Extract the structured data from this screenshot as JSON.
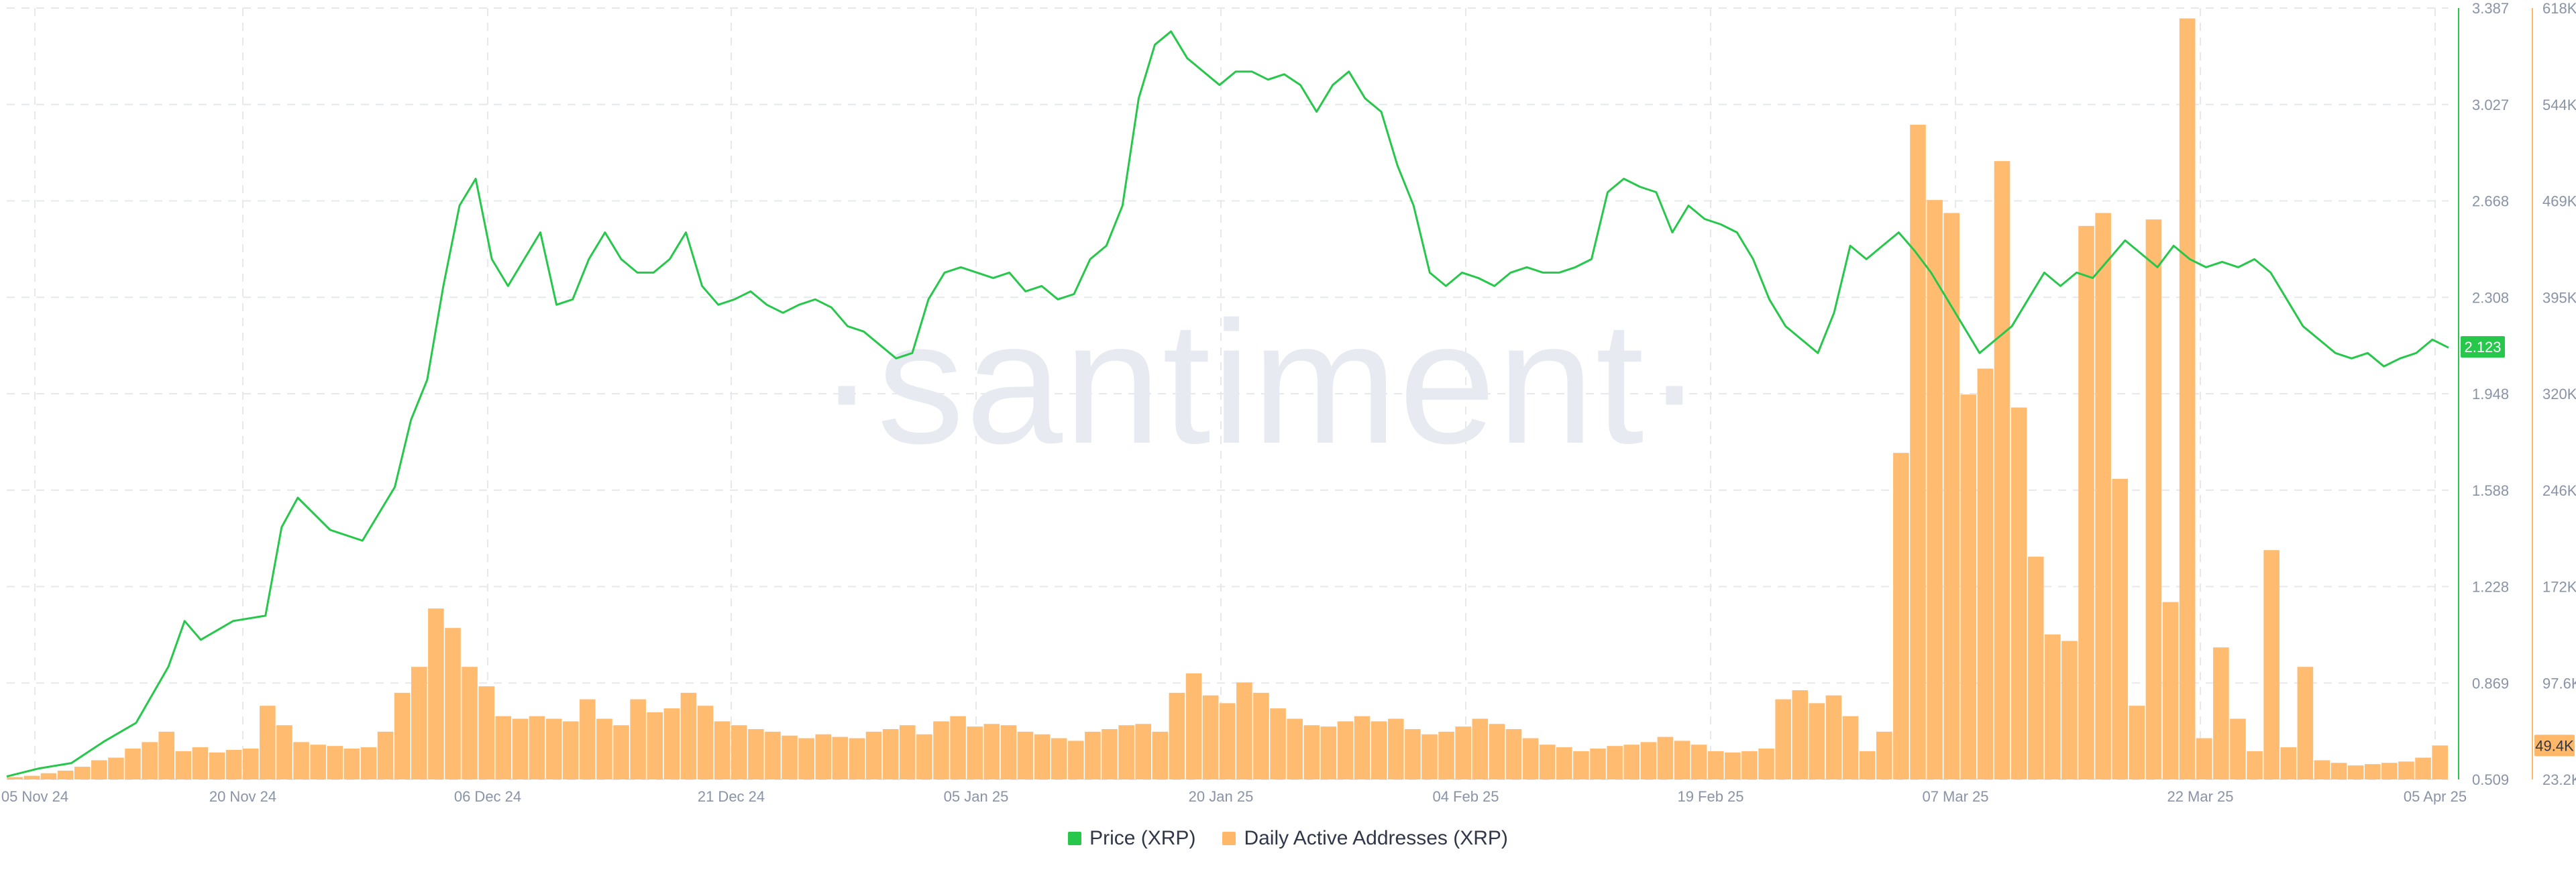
{
  "watermark": "·santiment·",
  "legend": {
    "price_label": "Price (XRP)",
    "daa_label": "Daily Active Addresses (XRP)"
  },
  "colors": {
    "price": "#26c74a",
    "daa": "#ffb869",
    "price_badge": "#26c74a",
    "daa_badge": "#ffb869",
    "grid": "#e6e8ee"
  },
  "chart_data": {
    "type": "line+bar",
    "x_ticks": [
      "05 Nov 24",
      "20 Nov 24",
      "06 Dec 24",
      "21 Dec 24",
      "05 Jan 25",
      "20 Jan 25",
      "04 Feb 25",
      "19 Feb 25",
      "07 Mar 25",
      "22 Mar 25",
      "05 Apr 25"
    ],
    "x_range": [
      "2024-11-05",
      "2025-04-05"
    ],
    "price_axis": {
      "ticks": [
        "3.387",
        "3.027",
        "2.668",
        "2.308",
        "1.948",
        "1.588",
        "1.228",
        "0.869",
        "0.509"
      ],
      "ylim": [
        0.509,
        3.387
      ],
      "current_value": "2.123"
    },
    "daa_axis": {
      "ticks": [
        "618K",
        "544K",
        "469K",
        "395K",
        "320K",
        "246K",
        "172K",
        "97.6K",
        "23.2K"
      ],
      "ylim": [
        23200,
        618000
      ],
      "current_value": "49.4K"
    },
    "series": [
      {
        "name": "Price (XRP)",
        "kind": "line",
        "points": [
          [
            "2024-11-05",
            0.52
          ],
          [
            "2024-11-07",
            0.55
          ],
          [
            "2024-11-09",
            0.57
          ],
          [
            "2024-11-11",
            0.65
          ],
          [
            "2024-11-13",
            0.72
          ],
          [
            "2024-11-15",
            0.93
          ],
          [
            "2024-11-16",
            1.1
          ],
          [
            "2024-11-17",
            1.03
          ],
          [
            "2024-11-19",
            1.1
          ],
          [
            "2024-11-21",
            1.12
          ],
          [
            "2024-11-22",
            1.45
          ],
          [
            "2024-11-23",
            1.56
          ],
          [
            "2024-11-25",
            1.44
          ],
          [
            "2024-11-27",
            1.4
          ],
          [
            "2024-11-29",
            1.6
          ],
          [
            "2024-11-30",
            1.85
          ],
          [
            "2024-12-01",
            2.0
          ],
          [
            "2024-12-02",
            2.35
          ],
          [
            "2024-12-03",
            2.65
          ],
          [
            "2024-12-04",
            2.75
          ],
          [
            "2024-12-05",
            2.45
          ],
          [
            "2024-12-06",
            2.35
          ],
          [
            "2024-12-07",
            2.45
          ],
          [
            "2024-12-08",
            2.55
          ],
          [
            "2024-12-09",
            2.28
          ],
          [
            "2024-12-10",
            2.3
          ],
          [
            "2024-12-11",
            2.45
          ],
          [
            "2024-12-12",
            2.55
          ],
          [
            "2024-12-13",
            2.45
          ],
          [
            "2024-12-14",
            2.4
          ],
          [
            "2024-12-15",
            2.4
          ],
          [
            "2024-12-16",
            2.45
          ],
          [
            "2024-12-17",
            2.55
          ],
          [
            "2024-12-18",
            2.35
          ],
          [
            "2024-12-19",
            2.28
          ],
          [
            "2024-12-20",
            2.3
          ],
          [
            "2024-12-21",
            2.33
          ],
          [
            "2024-12-22",
            2.28
          ],
          [
            "2024-12-23",
            2.25
          ],
          [
            "2024-12-24",
            2.28
          ],
          [
            "2024-12-25",
            2.3
          ],
          [
            "2024-12-26",
            2.27
          ],
          [
            "2024-12-27",
            2.2
          ],
          [
            "2024-12-28",
            2.18
          ],
          [
            "2024-12-29",
            2.13
          ],
          [
            "2024-12-30",
            2.08
          ],
          [
            "2024-12-31",
            2.1
          ],
          [
            "2025-01-01",
            2.3
          ],
          [
            "2025-01-02",
            2.4
          ],
          [
            "2025-01-03",
            2.42
          ],
          [
            "2025-01-04",
            2.4
          ],
          [
            "2025-01-05",
            2.38
          ],
          [
            "2025-01-06",
            2.4
          ],
          [
            "2025-01-07",
            2.33
          ],
          [
            "2025-01-08",
            2.35
          ],
          [
            "2025-01-09",
            2.3
          ],
          [
            "2025-01-10",
            2.32
          ],
          [
            "2025-01-11",
            2.45
          ],
          [
            "2025-01-12",
            2.5
          ],
          [
            "2025-01-13",
            2.65
          ],
          [
            "2025-01-14",
            3.05
          ],
          [
            "2025-01-15",
            3.25
          ],
          [
            "2025-01-16",
            3.3
          ],
          [
            "2025-01-17",
            3.2
          ],
          [
            "2025-01-18",
            3.15
          ],
          [
            "2025-01-19",
            3.1
          ],
          [
            "2025-01-20",
            3.15
          ],
          [
            "2025-01-21",
            3.15
          ],
          [
            "2025-01-22",
            3.12
          ],
          [
            "2025-01-23",
            3.14
          ],
          [
            "2025-01-24",
            3.1
          ],
          [
            "2025-01-25",
            3.0
          ],
          [
            "2025-01-26",
            3.1
          ],
          [
            "2025-01-27",
            3.15
          ],
          [
            "2025-01-28",
            3.05
          ],
          [
            "2025-01-29",
            3.0
          ],
          [
            "2025-01-30",
            2.8
          ],
          [
            "2025-01-31",
            2.65
          ],
          [
            "2025-02-01",
            2.4
          ],
          [
            "2025-02-02",
            2.35
          ],
          [
            "2025-02-03",
            2.4
          ],
          [
            "2025-02-04",
            2.38
          ],
          [
            "2025-02-05",
            2.35
          ],
          [
            "2025-02-06",
            2.4
          ],
          [
            "2025-02-07",
            2.42
          ],
          [
            "2025-02-08",
            2.4
          ],
          [
            "2025-02-09",
            2.4
          ],
          [
            "2025-02-10",
            2.42
          ],
          [
            "2025-02-11",
            2.45
          ],
          [
            "2025-02-12",
            2.7
          ],
          [
            "2025-02-13",
            2.75
          ],
          [
            "2025-02-14",
            2.72
          ],
          [
            "2025-02-15",
            2.7
          ],
          [
            "2025-02-16",
            2.55
          ],
          [
            "2025-02-17",
            2.65
          ],
          [
            "2025-02-18",
            2.6
          ],
          [
            "2025-02-19",
            2.58
          ],
          [
            "2025-02-20",
            2.55
          ],
          [
            "2025-02-21",
            2.45
          ],
          [
            "2025-02-22",
            2.3
          ],
          [
            "2025-02-23",
            2.2
          ],
          [
            "2025-02-24",
            2.15
          ],
          [
            "2025-02-25",
            2.1
          ],
          [
            "2025-02-26",
            2.25
          ],
          [
            "2025-02-27",
            2.5
          ],
          [
            "2025-02-28",
            2.45
          ],
          [
            "2025-03-01",
            2.5
          ],
          [
            "2025-03-02",
            2.55
          ],
          [
            "2025-03-03",
            2.48
          ],
          [
            "2025-03-04",
            2.4
          ],
          [
            "2025-03-05",
            2.3
          ],
          [
            "2025-03-06",
            2.2
          ],
          [
            "2025-03-07",
            2.1
          ],
          [
            "2025-03-08",
            2.15
          ],
          [
            "2025-03-09",
            2.2
          ],
          [
            "2025-03-10",
            2.3
          ],
          [
            "2025-03-11",
            2.4
          ],
          [
            "2025-03-12",
            2.35
          ],
          [
            "2025-03-13",
            2.4
          ],
          [
            "2025-03-14",
            2.38
          ],
          [
            "2025-03-15",
            2.45
          ],
          [
            "2025-03-16",
            2.52
          ],
          [
            "2025-03-17",
            2.47
          ],
          [
            "2025-03-18",
            2.42
          ],
          [
            "2025-03-19",
            2.5
          ],
          [
            "2025-03-20",
            2.45
          ],
          [
            "2025-03-21",
            2.42
          ],
          [
            "2025-03-22",
            2.44
          ],
          [
            "2025-03-23",
            2.42
          ],
          [
            "2025-03-24",
            2.45
          ],
          [
            "2025-03-25",
            2.4
          ],
          [
            "2025-03-26",
            2.3
          ],
          [
            "2025-03-27",
            2.2
          ],
          [
            "2025-03-28",
            2.15
          ],
          [
            "2025-03-29",
            2.1
          ],
          [
            "2025-03-30",
            2.08
          ],
          [
            "2025-03-31",
            2.1
          ],
          [
            "2025-04-01",
            2.05
          ],
          [
            "2025-04-02",
            2.08
          ],
          [
            "2025-04-03",
            2.1
          ],
          [
            "2025-04-04",
            2.15
          ],
          [
            "2025-04-05",
            2.12
          ]
        ]
      },
      {
        "name": "Daily Active Addresses (XRP)",
        "kind": "bar",
        "values": [
          25000,
          26000,
          28000,
          30000,
          33000,
          38000,
          40000,
          47000,
          52000,
          60000,
          45000,
          48000,
          44000,
          46000,
          47000,
          80000,
          65000,
          52000,
          50000,
          49000,
          47000,
          48000,
          60000,
          90000,
          110000,
          155000,
          140000,
          110000,
          95000,
          72000,
          70000,
          72000,
          70000,
          68000,
          85000,
          70000,
          65000,
          85000,
          75000,
          78000,
          90000,
          80000,
          68000,
          65000,
          62000,
          60000,
          57000,
          55000,
          58000,
          56000,
          55000,
          60000,
          62000,
          65000,
          58000,
          68000,
          72000,
          64000,
          66000,
          65000,
          60000,
          58000,
          55000,
          53000,
          60000,
          62000,
          65000,
          66000,
          60000,
          90000,
          105000,
          88000,
          82000,
          98000,
          90000,
          78000,
          70000,
          65000,
          64000,
          68000,
          72000,
          68000,
          70000,
          62000,
          58000,
          60000,
          64000,
          70000,
          66000,
          62000,
          55000,
          50000,
          48000,
          45000,
          47000,
          49000,
          50000,
          52000,
          56000,
          53000,
          50000,
          45000,
          44000,
          45000,
          47000,
          85000,
          92000,
          82000,
          88000,
          72000,
          45000,
          60000,
          275000,
          528000,
          470000,
          460000,
          320000,
          340000,
          500000,
          310000,
          195000,
          135000,
          130000,
          450000,
          460000,
          255000,
          80000,
          455000,
          160000,
          610000,
          55000,
          125000,
          70000,
          45000,
          200000,
          48000,
          110000,
          38000,
          36000,
          34000,
          35000,
          36000,
          37000,
          40000,
          49400
        ]
      }
    ],
    "grid": true,
    "legend_position": "bottom-center"
  }
}
